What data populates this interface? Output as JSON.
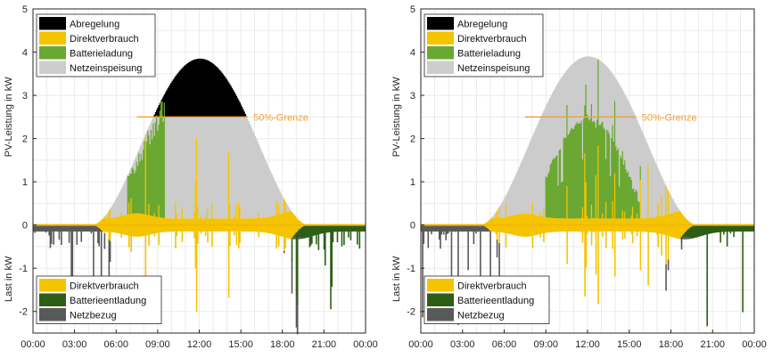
{
  "chart_data": [
    {
      "type": "area",
      "id": "left",
      "variant": "curtailment",
      "x_unit": "hours",
      "xlim": [
        0,
        24
      ],
      "x_tick_labels": [
        "00:00",
        "03:00",
        "06:00",
        "09:00",
        "12:00",
        "15:00",
        "18:00",
        "21:00",
        "00:00"
      ],
      "ylim": [
        -2.5,
        5
      ],
      "y_ticks": [
        -2,
        -1,
        0,
        1,
        2,
        3,
        4,
        5
      ],
      "ylabel_top": "PV-Leistung in kW",
      "ylabel_bottom": "Last in kW",
      "limit_kw": 2.5,
      "limit_label": "50%-Grenze",
      "pv_peak_kw": 3.85,
      "pv_start_h": 4.3,
      "pv_end_h": 19.8,
      "battery_charge_window_h": [
        6.8,
        9.5
      ],
      "battery_full_h": 9.5,
      "legend_top": [
        "Abregelung",
        "Direktverbrauch",
        "Batterieladung",
        "Netzeinspeisung"
      ],
      "legend_bottom": [
        "Direktverbrauch",
        "Batterieentladung",
        "Netzbezug"
      ]
    },
    {
      "type": "area",
      "id": "right",
      "variant": "forecast-based",
      "x_unit": "hours",
      "xlim": [
        0,
        24
      ],
      "x_tick_labels": [
        "00:00",
        "03:00",
        "06:00",
        "09:00",
        "12:00",
        "15:00",
        "18:00",
        "21:00",
        "00:00"
      ],
      "ylim": [
        -2.5,
        5
      ],
      "y_ticks": [
        -2,
        -1,
        0,
        1,
        2,
        3,
        4,
        5
      ],
      "ylabel_top": "PV-Leistung in kW",
      "ylabel_bottom": "Last in kW",
      "limit_kw": 2.5,
      "limit_label": "50%-Grenze",
      "pv_peak_kw": 3.9,
      "pv_start_h": 4.3,
      "pv_end_h": 19.8,
      "battery_charge_window_h": [
        9.0,
        15.8
      ],
      "legend_top": [
        "Abregelung",
        "Direktverbrauch",
        "Batterieladung",
        "Netzeinspeisung"
      ],
      "legend_bottom": [
        "Direktverbrauch",
        "Batterieentladung",
        "Netzbezug"
      ]
    }
  ],
  "colors": {
    "abregelung": "#000000",
    "direktverbrauch": "#f5c400",
    "batterieladung": "#6aa832",
    "netzeinspeisung": "#cccccc",
    "batterieentladung": "#2e5e16",
    "netzbezug": "#595959",
    "grenze": "#f0a030",
    "grid": "#e6e6e6"
  }
}
